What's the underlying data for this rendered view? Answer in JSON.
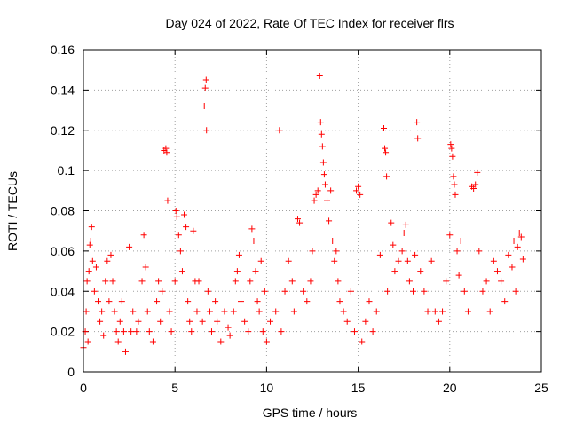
{
  "chart_data": {
    "type": "scatter",
    "title": "Day 024 of 2022, Rate Of TEC Index for receiver flrs",
    "xlabel": "GPS time / hours",
    "ylabel": "ROTI / TECUs",
    "xlim": [
      0,
      25
    ],
    "ylim": [
      0,
      0.16
    ],
    "xticks": [
      0,
      5,
      10,
      15,
      20,
      25
    ],
    "yticks": [
      0,
      0.02,
      0.04,
      0.06,
      0.08,
      0.1,
      0.12,
      0.14,
      0.16
    ],
    "xtick_labels": [
      "0",
      "5",
      "10",
      "15",
      "20",
      "25"
    ],
    "ytick_labels": [
      "0",
      "0.02",
      "0.04",
      "0.06",
      "0.08",
      "0.1",
      "0.12",
      "0.14",
      "0.16"
    ],
    "grid": true,
    "marker": "+",
    "color": "#ff0000",
    "series": [
      {
        "points": [
          [
            0.0,
            0.012
          ],
          [
            0.1,
            0.02
          ],
          [
            0.15,
            0.03
          ],
          [
            0.2,
            0.045
          ],
          [
            0.25,
            0.015
          ],
          [
            0.3,
            0.05
          ],
          [
            0.35,
            0.063
          ],
          [
            0.4,
            0.065
          ],
          [
            0.45,
            0.072
          ],
          [
            0.5,
            0.055
          ],
          [
            0.6,
            0.04
          ],
          [
            0.7,
            0.052
          ],
          [
            0.8,
            0.035
          ],
          [
            0.9,
            0.025
          ],
          [
            1.0,
            0.03
          ],
          [
            1.1,
            0.018
          ],
          [
            1.2,
            0.045
          ],
          [
            1.3,
            0.055
          ],
          [
            1.4,
            0.035
          ],
          [
            1.5,
            0.058
          ],
          [
            1.6,
            0.045
          ],
          [
            1.7,
            0.03
          ],
          [
            1.8,
            0.02
          ],
          [
            1.9,
            0.015
          ],
          [
            2.0,
            0.025
          ],
          [
            2.1,
            0.035
          ],
          [
            2.2,
            0.02
          ],
          [
            2.3,
            0.01
          ],
          [
            2.5,
            0.062
          ],
          [
            2.6,
            0.02
          ],
          [
            2.7,
            0.03
          ],
          [
            2.9,
            0.02
          ],
          [
            3.0,
            0.025
          ],
          [
            3.2,
            0.045
          ],
          [
            3.3,
            0.068
          ],
          [
            3.4,
            0.052
          ],
          [
            3.5,
            0.03
          ],
          [
            3.6,
            0.02
          ],
          [
            3.8,
            0.015
          ],
          [
            4.0,
            0.035
          ],
          [
            4.1,
            0.045
          ],
          [
            4.2,
            0.025
          ],
          [
            4.3,
            0.04
          ],
          [
            4.4,
            0.11
          ],
          [
            4.5,
            0.111
          ],
          [
            4.55,
            0.109
          ],
          [
            4.6,
            0.085
          ],
          [
            4.7,
            0.03
          ],
          [
            4.8,
            0.02
          ],
          [
            5.0,
            0.045
          ],
          [
            5.05,
            0.08
          ],
          [
            5.1,
            0.077
          ],
          [
            5.2,
            0.068
          ],
          [
            5.3,
            0.06
          ],
          [
            5.4,
            0.05
          ],
          [
            5.5,
            0.078
          ],
          [
            5.6,
            0.072
          ],
          [
            5.7,
            0.035
          ],
          [
            5.8,
            0.025
          ],
          [
            5.9,
            0.02
          ],
          [
            6.0,
            0.07
          ],
          [
            6.1,
            0.045
          ],
          [
            6.2,
            0.03
          ],
          [
            6.3,
            0.045
          ],
          [
            6.5,
            0.025
          ],
          [
            6.6,
            0.132
          ],
          [
            6.65,
            0.141
          ],
          [
            6.7,
            0.145
          ],
          [
            6.72,
            0.12
          ],
          [
            6.8,
            0.04
          ],
          [
            6.9,
            0.03
          ],
          [
            7.0,
            0.02
          ],
          [
            7.2,
            0.035
          ],
          [
            7.3,
            0.025
          ],
          [
            7.5,
            0.015
          ],
          [
            7.7,
            0.03
          ],
          [
            7.9,
            0.022
          ],
          [
            8.0,
            0.018
          ],
          [
            8.2,
            0.03
          ],
          [
            8.3,
            0.045
          ],
          [
            8.4,
            0.05
          ],
          [
            8.5,
            0.058
          ],
          [
            8.6,
            0.035
          ],
          [
            8.8,
            0.025
          ],
          [
            9.0,
            0.02
          ],
          [
            9.1,
            0.045
          ],
          [
            9.2,
            0.071
          ],
          [
            9.3,
            0.065
          ],
          [
            9.4,
            0.05
          ],
          [
            9.5,
            0.035
          ],
          [
            9.6,
            0.03
          ],
          [
            9.7,
            0.055
          ],
          [
            9.8,
            0.02
          ],
          [
            9.9,
            0.04
          ],
          [
            10.0,
            0.015
          ],
          [
            10.2,
            0.025
          ],
          [
            10.5,
            0.03
          ],
          [
            10.7,
            0.12
          ],
          [
            10.8,
            0.02
          ],
          [
            11.0,
            0.04
          ],
          [
            11.2,
            0.055
          ],
          [
            11.4,
            0.045
          ],
          [
            11.5,
            0.03
          ],
          [
            11.7,
            0.076
          ],
          [
            11.8,
            0.074
          ],
          [
            12.0,
            0.04
          ],
          [
            12.2,
            0.035
          ],
          [
            12.4,
            0.045
          ],
          [
            12.5,
            0.06
          ],
          [
            12.6,
            0.085
          ],
          [
            12.7,
            0.088
          ],
          [
            12.8,
            0.09
          ],
          [
            12.9,
            0.147
          ],
          [
            12.95,
            0.124
          ],
          [
            13.0,
            0.118
          ],
          [
            13.05,
            0.112
          ],
          [
            13.1,
            0.104
          ],
          [
            13.15,
            0.098
          ],
          [
            13.2,
            0.093
          ],
          [
            13.3,
            0.085
          ],
          [
            13.4,
            0.075
          ],
          [
            13.5,
            0.09
          ],
          [
            13.6,
            0.065
          ],
          [
            13.7,
            0.055
          ],
          [
            13.8,
            0.06
          ],
          [
            13.9,
            0.045
          ],
          [
            14.0,
            0.035
          ],
          [
            14.2,
            0.03
          ],
          [
            14.4,
            0.025
          ],
          [
            14.6,
            0.04
          ],
          [
            14.8,
            0.02
          ],
          [
            14.9,
            0.09
          ],
          [
            15.0,
            0.092
          ],
          [
            15.1,
            0.088
          ],
          [
            15.2,
            0.015
          ],
          [
            15.4,
            0.025
          ],
          [
            15.6,
            0.035
          ],
          [
            15.8,
            0.02
          ],
          [
            16.0,
            0.03
          ],
          [
            16.2,
            0.058
          ],
          [
            16.4,
            0.121
          ],
          [
            16.45,
            0.111
          ],
          [
            16.5,
            0.109
          ],
          [
            16.55,
            0.097
          ],
          [
            16.6,
            0.04
          ],
          [
            16.8,
            0.074
          ],
          [
            16.9,
            0.063
          ],
          [
            17.0,
            0.05
          ],
          [
            17.2,
            0.055
          ],
          [
            17.4,
            0.06
          ],
          [
            17.5,
            0.069
          ],
          [
            17.6,
            0.073
          ],
          [
            17.7,
            0.055
          ],
          [
            17.8,
            0.045
          ],
          [
            18.0,
            0.04
          ],
          [
            18.1,
            0.058
          ],
          [
            18.2,
            0.124
          ],
          [
            18.25,
            0.116
          ],
          [
            18.4,
            0.05
          ],
          [
            18.6,
            0.04
          ],
          [
            18.8,
            0.03
          ],
          [
            19.0,
            0.055
          ],
          [
            19.2,
            0.03
          ],
          [
            19.4,
            0.025
          ],
          [
            19.6,
            0.03
          ],
          [
            19.8,
            0.045
          ],
          [
            20.0,
            0.068
          ],
          [
            20.05,
            0.113
          ],
          [
            20.1,
            0.111
          ],
          [
            20.15,
            0.107
          ],
          [
            20.2,
            0.097
          ],
          [
            20.25,
            0.093
          ],
          [
            20.3,
            0.088
          ],
          [
            20.4,
            0.06
          ],
          [
            20.5,
            0.048
          ],
          [
            20.6,
            0.065
          ],
          [
            20.8,
            0.04
          ],
          [
            21.0,
            0.03
          ],
          [
            21.2,
            0.092
          ],
          [
            21.3,
            0.091
          ],
          [
            21.4,
            0.093
          ],
          [
            21.5,
            0.099
          ],
          [
            21.6,
            0.06
          ],
          [
            21.8,
            0.04
          ],
          [
            22.0,
            0.045
          ],
          [
            22.2,
            0.03
          ],
          [
            22.4,
            0.055
          ],
          [
            22.6,
            0.05
          ],
          [
            22.8,
            0.045
          ],
          [
            23.0,
            0.035
          ],
          [
            23.2,
            0.058
          ],
          [
            23.4,
            0.052
          ],
          [
            23.5,
            0.065
          ],
          [
            23.6,
            0.04
          ],
          [
            23.7,
            0.062
          ],
          [
            23.8,
            0.069
          ],
          [
            23.9,
            0.067
          ],
          [
            24.0,
            0.056
          ]
        ]
      }
    ]
  }
}
